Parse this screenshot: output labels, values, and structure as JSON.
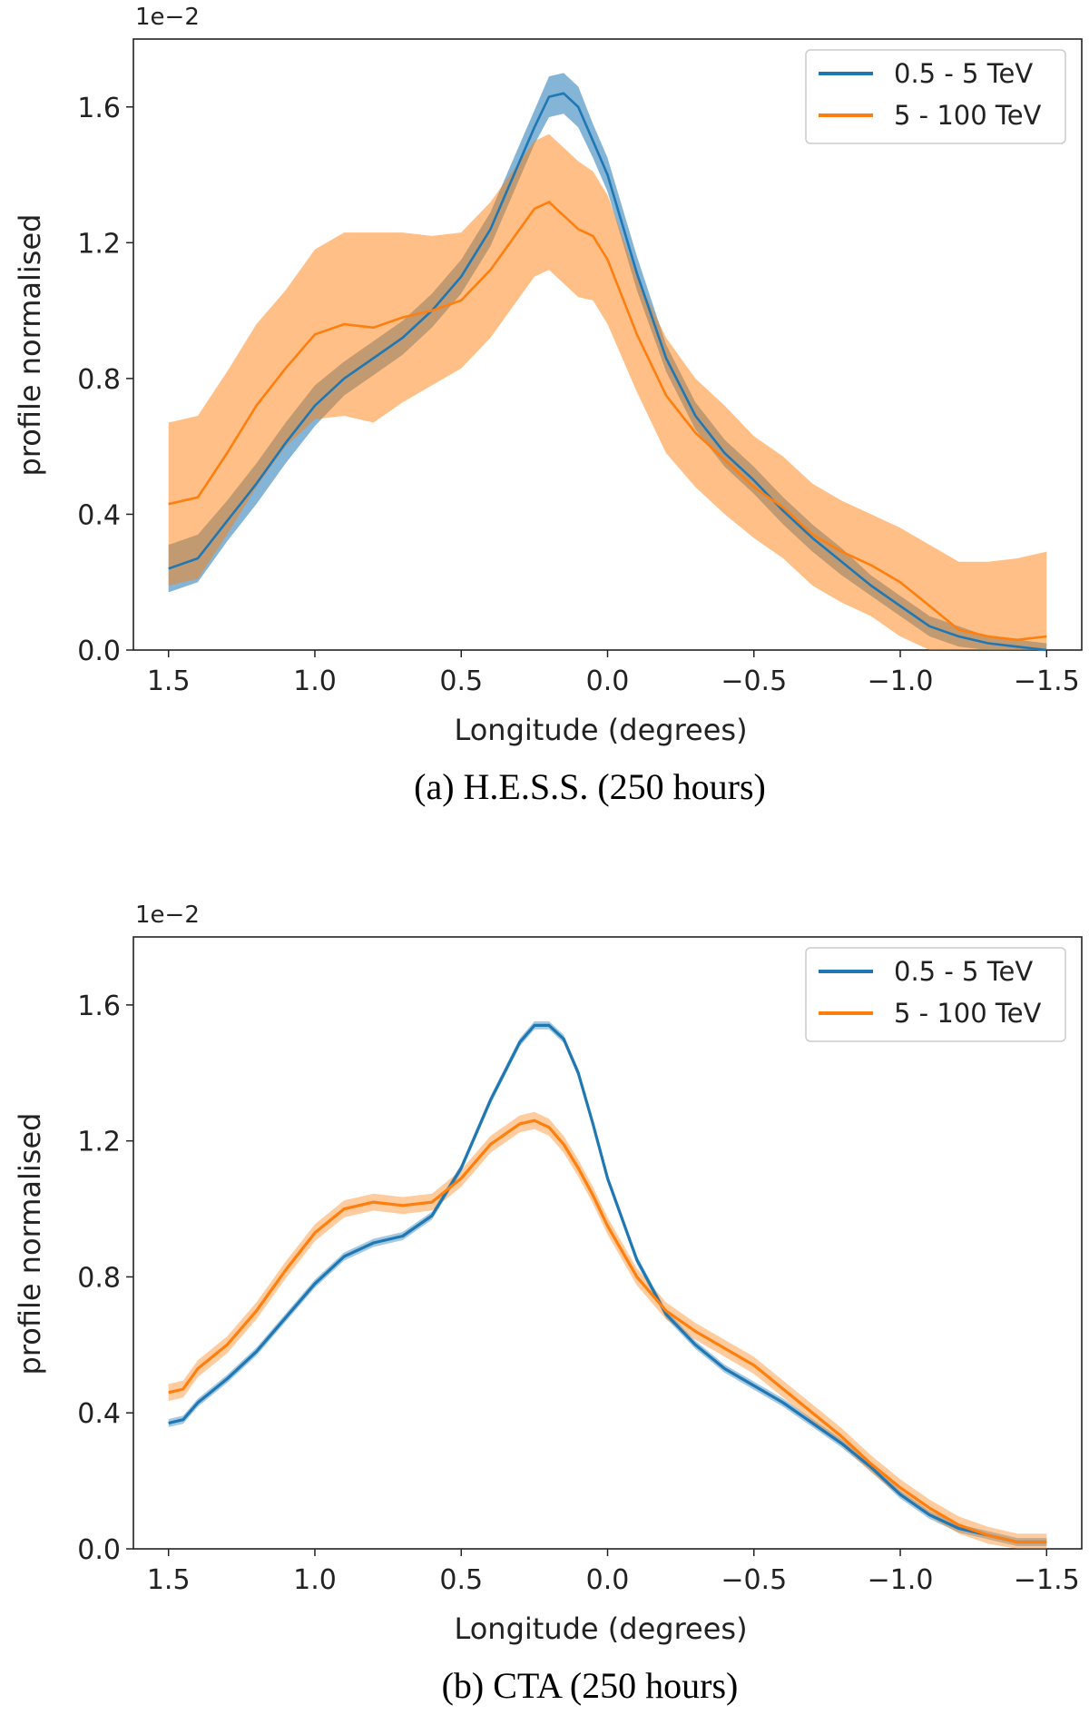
{
  "colors": {
    "blue": "#1f77b4",
    "orange": "#ff7f0e"
  },
  "chart_data": [
    {
      "type": "line",
      "caption": "(a)  H.E.S.S. (250 hours)",
      "xlabel": "Longitude (degrees)",
      "ylabel": "profile normalised",
      "exponent_label": "1e−2",
      "xlim": [
        1.62,
        -1.62
      ],
      "ylim": [
        0.0,
        1.8
      ],
      "xticks": [
        1.5,
        1.0,
        0.5,
        0.0,
        -0.5,
        -1.0,
        -1.5
      ],
      "xtick_labels": [
        "1.5",
        "1.0",
        "0.5",
        "0.0",
        "−0.5",
        "−1.0",
        "−1.5"
      ],
      "yticks": [
        0.0,
        0.4,
        0.8,
        1.2,
        1.6
      ],
      "ytick_labels": [
        "0.0",
        "0.4",
        "0.8",
        "1.2",
        "1.6"
      ],
      "legend_position": "top-right",
      "series": [
        {
          "name": "0.5 - 5 TeV",
          "color": "#1f77b4",
          "x": [
            1.5,
            1.4,
            1.3,
            1.2,
            1.1,
            1.0,
            0.9,
            0.8,
            0.7,
            0.6,
            0.5,
            0.4,
            0.3,
            0.25,
            0.2,
            0.15,
            0.1,
            0.05,
            0.0,
            -0.1,
            -0.2,
            -0.3,
            -0.4,
            -0.5,
            -0.6,
            -0.7,
            -0.8,
            -0.9,
            -1.0,
            -1.1,
            -1.2,
            -1.3,
            -1.4,
            -1.5
          ],
          "y": [
            0.24,
            0.27,
            0.38,
            0.49,
            0.61,
            0.72,
            0.8,
            0.86,
            0.92,
            1.0,
            1.1,
            1.24,
            1.44,
            1.54,
            1.63,
            1.64,
            1.6,
            1.5,
            1.4,
            1.11,
            0.86,
            0.69,
            0.58,
            0.5,
            0.41,
            0.33,
            0.26,
            0.19,
            0.13,
            0.07,
            0.04,
            0.02,
            0.01,
            0.0
          ],
          "err": [
            0.07,
            0.07,
            0.06,
            0.06,
            0.06,
            0.06,
            0.05,
            0.05,
            0.05,
            0.05,
            0.05,
            0.05,
            0.05,
            0.05,
            0.06,
            0.06,
            0.06,
            0.05,
            0.05,
            0.05,
            0.04,
            0.04,
            0.04,
            0.04,
            0.04,
            0.04,
            0.04,
            0.03,
            0.03,
            0.03,
            0.03,
            0.02,
            0.02,
            0.02
          ]
        },
        {
          "name": "5 - 100 TeV",
          "color": "#ff7f0e",
          "x": [
            1.5,
            1.4,
            1.3,
            1.2,
            1.1,
            1.0,
            0.9,
            0.8,
            0.7,
            0.6,
            0.5,
            0.4,
            0.3,
            0.25,
            0.2,
            0.15,
            0.1,
            0.05,
            0.0,
            -0.1,
            -0.2,
            -0.3,
            -0.4,
            -0.5,
            -0.6,
            -0.7,
            -0.8,
            -0.9,
            -1.0,
            -1.1,
            -1.2,
            -1.3,
            -1.4,
            -1.5
          ],
          "y": [
            0.43,
            0.45,
            0.58,
            0.72,
            0.83,
            0.93,
            0.96,
            0.95,
            0.98,
            1.0,
            1.03,
            1.12,
            1.24,
            1.3,
            1.32,
            1.28,
            1.24,
            1.22,
            1.15,
            0.93,
            0.75,
            0.64,
            0.56,
            0.48,
            0.42,
            0.34,
            0.29,
            0.25,
            0.2,
            0.13,
            0.06,
            0.04,
            0.03,
            0.04
          ],
          "err": [
            0.24,
            0.24,
            0.24,
            0.24,
            0.23,
            0.25,
            0.27,
            0.28,
            0.25,
            0.22,
            0.2,
            0.2,
            0.2,
            0.2,
            0.2,
            0.2,
            0.2,
            0.19,
            0.19,
            0.17,
            0.17,
            0.16,
            0.16,
            0.15,
            0.15,
            0.15,
            0.15,
            0.15,
            0.16,
            0.18,
            0.2,
            0.22,
            0.24,
            0.25
          ]
        }
      ]
    },
    {
      "type": "line",
      "caption": "(b)  CTA (250 hours)",
      "xlabel": "Longitude (degrees)",
      "ylabel": "profile normalised",
      "exponent_label": "1e−2",
      "xlim": [
        1.62,
        -1.62
      ],
      "ylim": [
        0.0,
        1.8
      ],
      "xticks": [
        1.5,
        1.0,
        0.5,
        0.0,
        -0.5,
        -1.0,
        -1.5
      ],
      "xtick_labels": [
        "1.5",
        "1.0",
        "0.5",
        "0.0",
        "−0.5",
        "−1.0",
        "−1.5"
      ],
      "yticks": [
        0.0,
        0.4,
        0.8,
        1.2,
        1.6
      ],
      "ytick_labels": [
        "0.0",
        "0.4",
        "0.8",
        "1.2",
        "1.6"
      ],
      "legend_position": "top-right",
      "series": [
        {
          "name": "0.5 - 5 TeV",
          "color": "#1f77b4",
          "x": [
            1.5,
            1.45,
            1.4,
            1.3,
            1.2,
            1.1,
            1.0,
            0.9,
            0.8,
            0.7,
            0.6,
            0.5,
            0.4,
            0.3,
            0.25,
            0.2,
            0.15,
            0.1,
            0.05,
            0.0,
            -0.1,
            -0.2,
            -0.3,
            -0.4,
            -0.5,
            -0.6,
            -0.7,
            -0.8,
            -0.9,
            -1.0,
            -1.1,
            -1.2,
            -1.3,
            -1.4,
            -1.5
          ],
          "y": [
            0.37,
            0.38,
            0.43,
            0.5,
            0.58,
            0.68,
            0.78,
            0.86,
            0.9,
            0.92,
            0.98,
            1.12,
            1.32,
            1.49,
            1.54,
            1.54,
            1.5,
            1.4,
            1.25,
            1.09,
            0.85,
            0.69,
            0.6,
            0.53,
            0.48,
            0.43,
            0.37,
            0.31,
            0.24,
            0.16,
            0.1,
            0.06,
            0.04,
            0.02,
            0.02
          ],
          "err": [
            0.012,
            0.012,
            0.012,
            0.012,
            0.012,
            0.012,
            0.012,
            0.012,
            0.012,
            0.012,
            0.012,
            0.012,
            0.012,
            0.012,
            0.012,
            0.012,
            0.012,
            0.012,
            0.012,
            0.012,
            0.012,
            0.012,
            0.012,
            0.012,
            0.012,
            0.012,
            0.012,
            0.012,
            0.012,
            0.012,
            0.012,
            0.012,
            0.012,
            0.012,
            0.012
          ]
        },
        {
          "name": "5 - 100 TeV",
          "color": "#ff7f0e",
          "x": [
            1.5,
            1.45,
            1.4,
            1.3,
            1.2,
            1.1,
            1.0,
            0.9,
            0.8,
            0.7,
            0.6,
            0.5,
            0.4,
            0.3,
            0.25,
            0.2,
            0.15,
            0.1,
            0.05,
            0.0,
            -0.1,
            -0.2,
            -0.3,
            -0.4,
            -0.5,
            -0.6,
            -0.7,
            -0.8,
            -0.9,
            -1.0,
            -1.1,
            -1.2,
            -1.3,
            -1.4,
            -1.5
          ],
          "y": [
            0.46,
            0.47,
            0.53,
            0.6,
            0.7,
            0.82,
            0.93,
            1.0,
            1.02,
            1.01,
            1.02,
            1.09,
            1.19,
            1.25,
            1.26,
            1.24,
            1.19,
            1.12,
            1.04,
            0.95,
            0.8,
            0.7,
            0.64,
            0.59,
            0.54,
            0.47,
            0.4,
            0.33,
            0.25,
            0.18,
            0.12,
            0.07,
            0.04,
            0.02,
            0.02
          ],
          "err": [
            0.025,
            0.025,
            0.025,
            0.025,
            0.025,
            0.025,
            0.025,
            0.025,
            0.025,
            0.025,
            0.025,
            0.025,
            0.025,
            0.025,
            0.025,
            0.025,
            0.025,
            0.025,
            0.025,
            0.025,
            0.025,
            0.025,
            0.025,
            0.025,
            0.025,
            0.025,
            0.025,
            0.025,
            0.025,
            0.025,
            0.025,
            0.025,
            0.025,
            0.025,
            0.025
          ]
        }
      ]
    }
  ]
}
